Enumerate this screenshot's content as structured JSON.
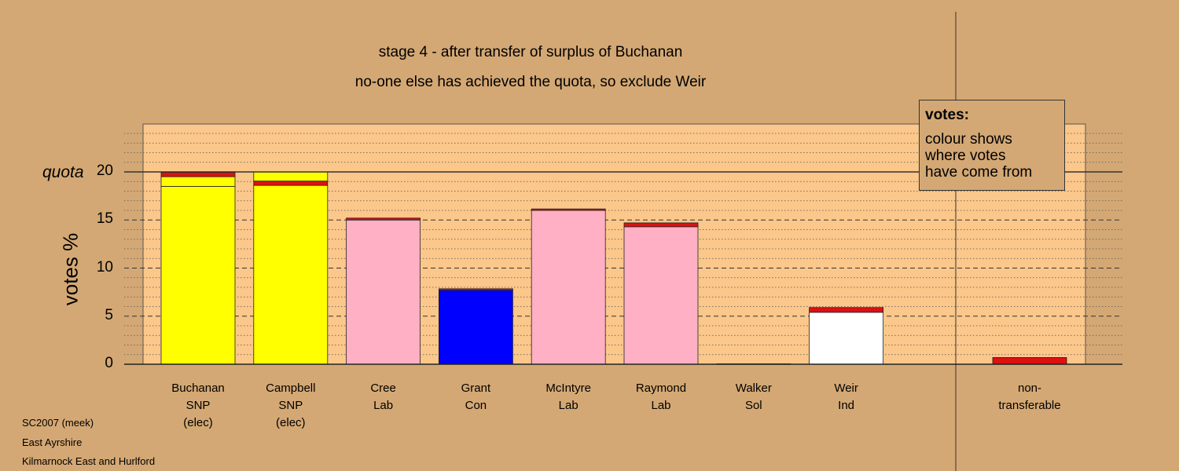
{
  "titles": {
    "line1": "stage 4 - after transfer of surplus of Buchanan",
    "line2": "no-one else has achieved the quota, so exclude Weir"
  },
  "quota_label": "quota",
  "legend": {
    "title": "votes:",
    "body": "colour shows\nwhere votes\nhave come from"
  },
  "footer": {
    "line1": "SC2007 (meek)",
    "line2": "East Ayrshire",
    "line3": "Kilmarnock East and Hurlford"
  },
  "colors": {
    "background": "#d4a874",
    "plot_area": "#fbc78a",
    "SNP": "#ffff00",
    "Lab": "#ffb0c4",
    "Con": "#0000ff",
    "Ind": "#ffffff",
    "transfer": "#dd1111",
    "nontransferable": "#dd1111"
  },
  "chart_data": {
    "type": "bar",
    "stacked": true,
    "ylabel": "votes %",
    "ylim": [
      0,
      25
    ],
    "yticks": [
      0,
      5,
      10,
      15,
      20
    ],
    "quota": 20,
    "candidates": [
      {
        "name": "Buchanan",
        "party": "SNP",
        "status": "(elec)",
        "segments": [
          {
            "from": "SNP",
            "value": 18.5
          },
          {
            "from": "SNP",
            "value": 1.0
          },
          {
            "from": "transfer",
            "value": 0.45
          }
        ]
      },
      {
        "name": "Campbell",
        "party": "SNP",
        "status": "(elec)",
        "segments": [
          {
            "from": "SNP",
            "value": 18.6
          },
          {
            "from": "transfer",
            "value": 0.45
          },
          {
            "from": "SNP",
            "value": 0.95
          }
        ]
      },
      {
        "name": "Cree",
        "party": "Lab",
        "status": "",
        "segments": [
          {
            "from": "Lab",
            "value": 15.0
          },
          {
            "from": "transfer",
            "value": 0.2
          }
        ]
      },
      {
        "name": "Grant",
        "party": "Con",
        "status": "",
        "segments": [
          {
            "from": "Con",
            "value": 7.7
          },
          {
            "from": "transfer",
            "value": 0.15
          }
        ]
      },
      {
        "name": "McIntyre",
        "party": "Lab",
        "status": "",
        "segments": [
          {
            "from": "Lab",
            "value": 16.0
          },
          {
            "from": "transfer",
            "value": 0.15
          }
        ]
      },
      {
        "name": "Raymond",
        "party": "Lab",
        "status": "",
        "segments": [
          {
            "from": "Lab",
            "value": 14.3
          },
          {
            "from": "transfer",
            "value": 0.4
          }
        ]
      },
      {
        "name": "Walker",
        "party": "Sol",
        "status": "",
        "segments": [
          {
            "from": "transfer",
            "value": 0.05
          }
        ]
      },
      {
        "name": "Weir",
        "party": "Ind",
        "status": "",
        "segments": [
          {
            "from": "Ind",
            "value": 5.4
          },
          {
            "from": "transfer",
            "value": 0.5
          }
        ]
      }
    ],
    "nontransferable": {
      "line1": "non-",
      "line2": "transferable",
      "segments": [
        {
          "from": "nontransferable",
          "value": 0.7
        }
      ]
    }
  }
}
